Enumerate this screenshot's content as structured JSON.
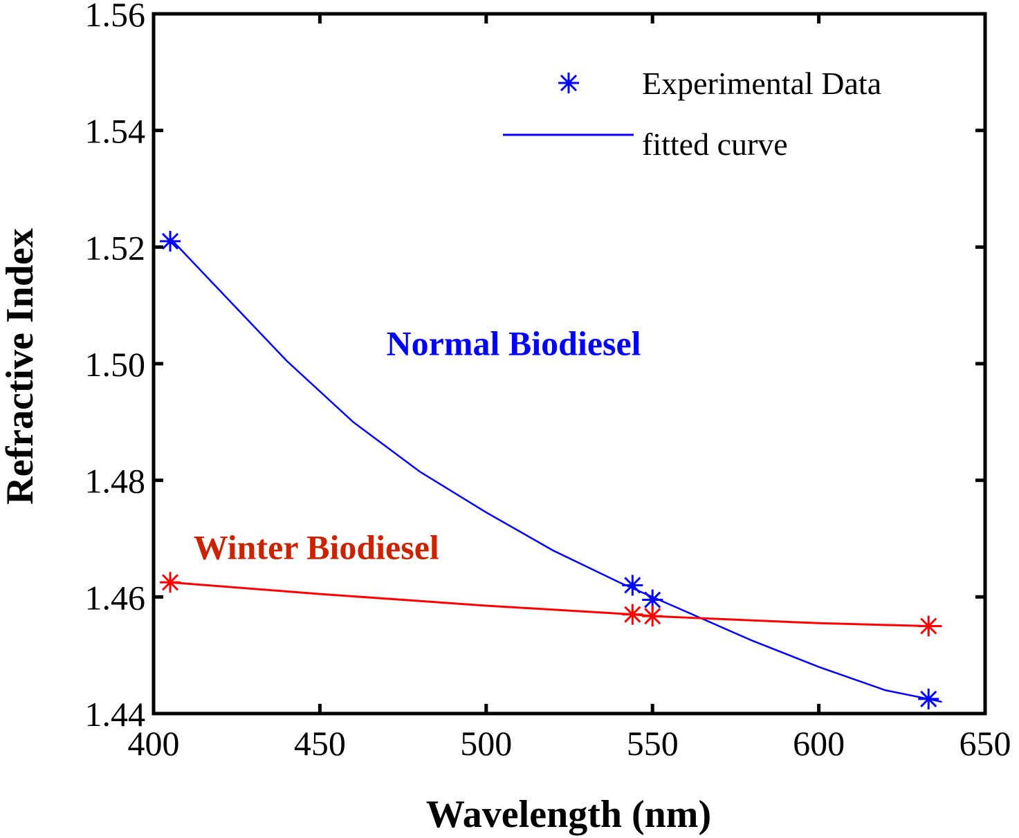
{
  "chart_data": {
    "type": "line",
    "xlabel": "Wavelength (nm)",
    "ylabel": "Refractive Index",
    "xlim": [
      400,
      650
    ],
    "ylim": [
      1.44,
      1.56
    ],
    "x_ticks": [
      400,
      450,
      500,
      550,
      600,
      650
    ],
    "y_ticks": [
      1.44,
      1.46,
      1.48,
      1.5,
      1.52,
      1.54,
      1.56
    ],
    "x_tick_labels": [
      "400",
      "450",
      "500",
      "550",
      "600",
      "650"
    ],
    "y_tick_labels": [
      "1.44",
      "1.46",
      "1.48",
      "1.50",
      "1.52",
      "1.54",
      "1.56"
    ],
    "grid": false,
    "legend": {
      "position": "top-right",
      "entries": [
        {
          "label": "Experimental Data",
          "marker": "asterisk",
          "color": "#0000ff"
        },
        {
          "label": "fitted curve",
          "marker": "line",
          "color": "#0000ff"
        }
      ]
    },
    "annotations": [
      {
        "text": "Normal Biodiesel",
        "x": 470,
        "y": 1.5015,
        "color": "#0000ff"
      },
      {
        "text": "Winter Biodiesel",
        "x": 412,
        "y": 1.4665,
        "color": "#cc2200"
      }
    ],
    "series": [
      {
        "color": "#0000ff",
        "points_x": [
          405,
          544,
          550,
          633
        ],
        "points_y": [
          1.521,
          1.462,
          1.4595,
          1.4425
        ],
        "fit_x": [
          405,
          420,
          440,
          460,
          480,
          500,
          520,
          540,
          550,
          560,
          580,
          600,
          620,
          633,
          637
        ],
        "fit_y": [
          1.5215,
          1.5125,
          1.5005,
          1.49,
          1.4815,
          1.4745,
          1.468,
          1.4625,
          1.46,
          1.4575,
          1.4525,
          1.448,
          1.444,
          1.4425,
          1.442
        ]
      },
      {
        "color": "#ff0000",
        "points_x": [
          405,
          544,
          550,
          633
        ],
        "points_y": [
          1.4625,
          1.457,
          1.4567,
          1.455
        ],
        "fit_x": [
          405,
          450,
          500,
          544,
          550,
          600,
          633,
          637
        ],
        "fit_y": [
          1.4625,
          1.4605,
          1.4585,
          1.457,
          1.4567,
          1.4555,
          1.455,
          1.455
        ]
      }
    ]
  }
}
